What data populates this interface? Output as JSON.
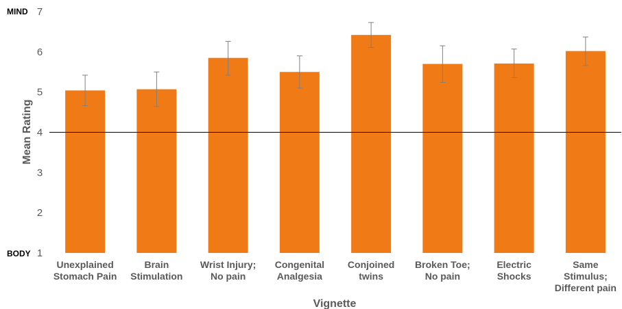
{
  "chart_data": {
    "type": "bar",
    "title": "",
    "xlabel": "Vignette",
    "ylabel": "Mean Rating",
    "ylim": [
      1,
      7
    ],
    "yticks": [
      1,
      2,
      3,
      4,
      5,
      6,
      7
    ],
    "y_end_labels": {
      "top": "MIND",
      "bottom": "BODY"
    },
    "reference_line": 4,
    "grid": false,
    "bar_color": "#F07B16",
    "categories": [
      [
        "Unexplained",
        "Stomach Pain"
      ],
      [
        "Brain",
        "Stimulation"
      ],
      [
        "Wrist Injury;",
        "No pain"
      ],
      [
        "Congenital",
        "Analgesia"
      ],
      [
        "Conjoined",
        "twins"
      ],
      [
        "Broken Toe;",
        "No pain"
      ],
      [
        "Electric",
        "Shocks"
      ],
      [
        "Same",
        "Stimulus;",
        "Different pain"
      ]
    ],
    "values": [
      5.04,
      5.07,
      5.85,
      5.5,
      6.42,
      5.7,
      5.71,
      6.02
    ],
    "error_low": [
      4.66,
      4.64,
      5.42,
      5.1,
      6.11,
      5.24,
      5.36,
      5.66
    ],
    "error_high": [
      5.42,
      5.5,
      6.26,
      5.9,
      6.73,
      6.15,
      6.07,
      6.37
    ]
  }
}
